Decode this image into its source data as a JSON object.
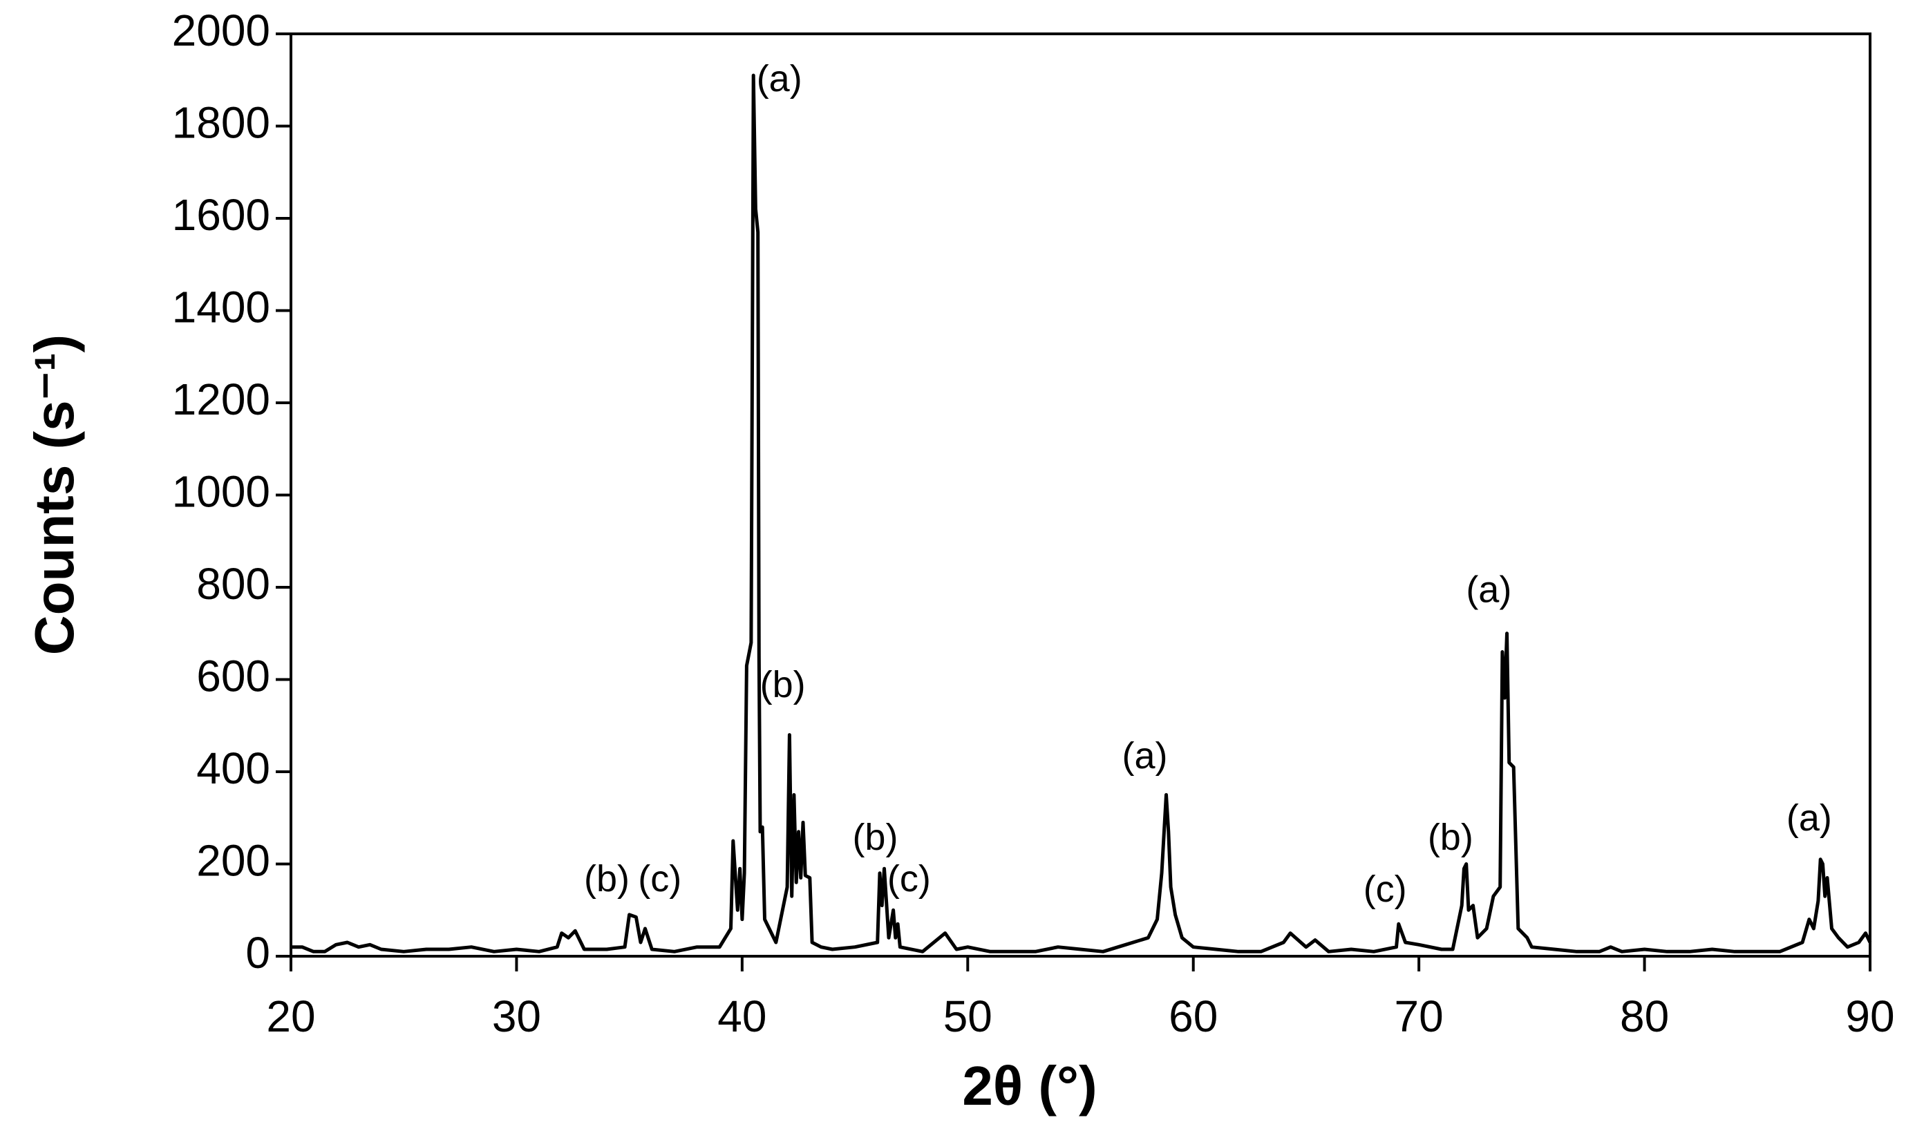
{
  "chart_data": {
    "type": "line",
    "x_label": "2θ (°)",
    "y_label": "Counts (s⁻¹)",
    "color": "#000000",
    "x": [
      20,
      20.5,
      21,
      21.5,
      22,
      22.5,
      23,
      23.5,
      24,
      25,
      26,
      27,
      28,
      29,
      30,
      31,
      31.8,
      32,
      32.3,
      32.6,
      33,
      34,
      34.8,
      35,
      35.3,
      35.5,
      35.7,
      36,
      37,
      38,
      39,
      39.5,
      39.6,
      39.8,
      39.9,
      40.0,
      40.1,
      40.2,
      40.4,
      40.5,
      40.6,
      40.7,
      40.75,
      40.8,
      40.9,
      41.0,
      41.5,
      42.0,
      42.1,
      42.2,
      42.3,
      42.4,
      42.5,
      42.6,
      42.7,
      42.8,
      43.0,
      43.1,
      43.5,
      44,
      45,
      46.0,
      46.1,
      46.2,
      46.3,
      46.5,
      46.7,
      46.8,
      46.9,
      47,
      48,
      49,
      49.5,
      50,
      51,
      53,
      54,
      55,
      56,
      57,
      58,
      58.4,
      58.6,
      58.8,
      58.9,
      59.0,
      59.2,
      59.5,
      60,
      61,
      62,
      63,
      64,
      64.3,
      65,
      65.4,
      66,
      67,
      68,
      69,
      69.1,
      69.4,
      70,
      71,
      71.5,
      71.9,
      72,
      72.1,
      72.2,
      72.4,
      72.6,
      73,
      73.3,
      73.6,
      73.7,
      73.8,
      73.9,
      74.0,
      74.2,
      74.4,
      74.8,
      75,
      76,
      77,
      78,
      78.5,
      79,
      80,
      81,
      82,
      83,
      84,
      85,
      86,
      87,
      87.3,
      87.5,
      87.7,
      87.8,
      87.9,
      88,
      88.1,
      88.3,
      88.6,
      89,
      89.5,
      89.8,
      90
    ],
    "values": [
      20,
      20,
      10,
      10,
      25,
      30,
      20,
      25,
      15,
      10,
      15,
      15,
      20,
      10,
      15,
      10,
      20,
      50,
      40,
      55,
      15,
      15,
      20,
      90,
      85,
      30,
      60,
      15,
      10,
      20,
      20,
      60,
      250,
      100,
      190,
      80,
      180,
      630,
      680,
      1910,
      1620,
      1570,
      650,
      270,
      280,
      80,
      30,
      150,
      480,
      130,
      350,
      160,
      270,
      170,
      290,
      175,
      170,
      30,
      20,
      15,
      20,
      30,
      180,
      110,
      190,
      40,
      100,
      40,
      70,
      20,
      10,
      50,
      15,
      20,
      10,
      10,
      20,
      15,
      10,
      25,
      40,
      80,
      180,
      350,
      270,
      150,
      90,
      40,
      20,
      15,
      10,
      10,
      30,
      50,
      20,
      35,
      10,
      15,
      10,
      20,
      70,
      30,
      25,
      15,
      15,
      110,
      190,
      200,
      100,
      110,
      40,
      60,
      130,
      150,
      660,
      560,
      700,
      420,
      410,
      60,
      40,
      20,
      15,
      10,
      10,
      20,
      10,
      15,
      10,
      10,
      15,
      10,
      10,
      10,
      30,
      80,
      60,
      120,
      210,
      200,
      130,
      170,
      60,
      40,
      20,
      30,
      50,
      30
    ],
    "xlim": [
      20,
      90
    ],
    "xticks": [
      20,
      30,
      40,
      50,
      60,
      70,
      80,
      90
    ],
    "ylim": [
      0,
      2000
    ],
    "yticks": [
      0,
      200,
      400,
      600,
      800,
      1000,
      1200,
      1400,
      1600,
      1800,
      2000
    ],
    "annotations": [
      {
        "text": "(a)",
        "x": 41.65,
        "y": 1897
      },
      {
        "text": "(b)",
        "x": 41.8,
        "y": 583
      },
      {
        "text": "(b)",
        "x": 34.0,
        "y": 162
      },
      {
        "text": "(c)",
        "x": 36.35,
        "y": 162
      },
      {
        "text": "(b)",
        "x": 45.9,
        "y": 252
      },
      {
        "text": "(c)",
        "x": 47.4,
        "y": 162
      },
      {
        "text": "(a)",
        "x": 57.85,
        "y": 429
      },
      {
        "text": "(c)",
        "x": 68.5,
        "y": 140
      },
      {
        "text": "(b)",
        "x": 71.4,
        "y": 252
      },
      {
        "text": "(a)",
        "x": 73.1,
        "y": 789
      },
      {
        "text": "(a)",
        "x": 87.3,
        "y": 294
      }
    ]
  }
}
